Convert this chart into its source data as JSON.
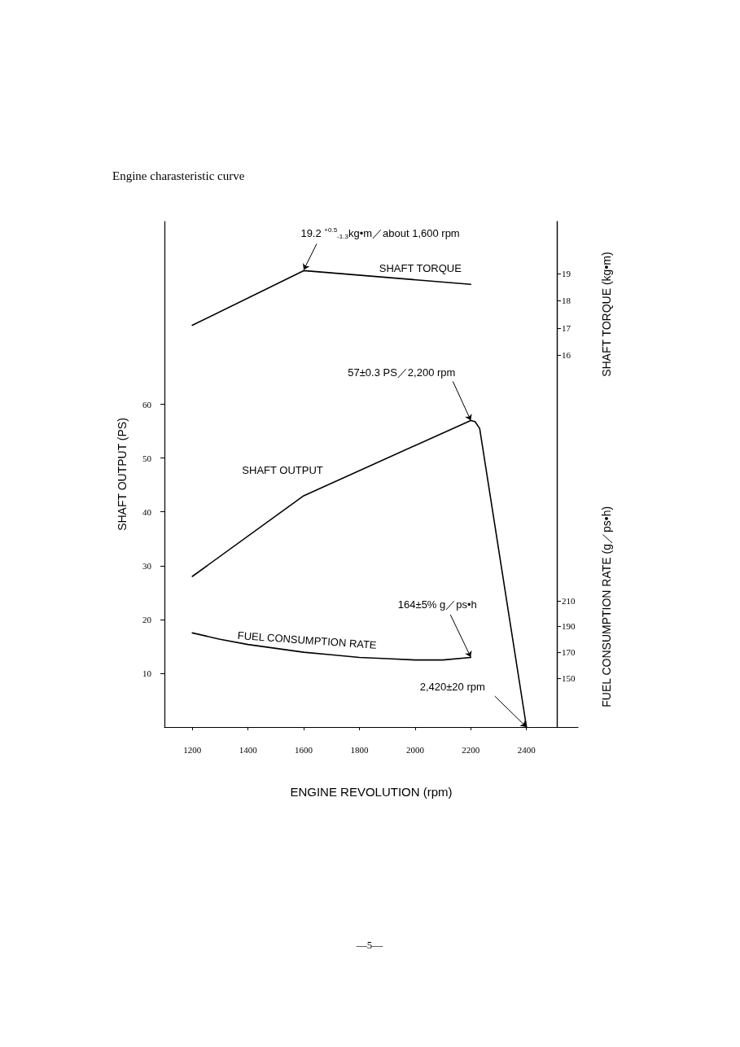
{
  "chart_data": {
    "type": "line",
    "title": "Engine charasteristic curve",
    "xlabel": "ENGINE REVOLUTION (rpm)",
    "ylabel": "SHAFT OUTPUT (PS)",
    "y2label": "SHAFT TORQUE (kg•m)",
    "y3label": "FUEL CONSUMPTION RATE (g／ps•h)",
    "xlim": [
      1100,
      2585
    ],
    "xticks": [
      1200,
      1400,
      1600,
      1800,
      2000,
      2200,
      2400
    ],
    "ylim": [
      0,
      94
    ],
    "yticks": [
      10,
      20,
      30,
      40,
      50,
      60
    ],
    "y2lim": [
      2.4,
      20.9
    ],
    "y2ticks": [
      16,
      17,
      18,
      19
    ],
    "y3lim": [
      112,
      504
    ],
    "y3ticks": [
      150,
      170,
      190,
      210
    ],
    "grid": false,
    "legend": false,
    "marker": "none",
    "line_style": "solid",
    "series": [
      {
        "name": "SHAFT OUTPUT",
        "color": "#000000",
        "x": [
          1200,
          1600,
          2200,
          2215,
          2232,
          2400
        ],
        "values": [
          28,
          43,
          57,
          56.8,
          55.5,
          0
        ]
      },
      {
        "name": "SHAFT TORQUE",
        "color": "#000000",
        "axis": "y2",
        "x": [
          1200,
          1600,
          2200
        ],
        "values": [
          17.1,
          19.1,
          18.6
        ]
      },
      {
        "name": "FUEL CONSUMPTION RATE",
        "color": "#000000",
        "axis": "y3",
        "x": [
          1200,
          1300,
          1400,
          1500,
          1600,
          1700,
          1800,
          1900,
          2000,
          2100,
          2200
        ],
        "values": [
          185,
          180,
          176,
          173,
          170,
          168,
          166,
          165,
          164,
          164,
          166
        ]
      }
    ],
    "annotations": [
      {
        "text": "19.2 $^{+0.5}$$_{-1.3}$kg•m／about 1,600 rpm",
        "x": 1600,
        "y": 85
      },
      {
        "text": "57±0.3 PS／2,200 rpm",
        "x": 2200,
        "y": 57
      },
      {
        "text": "164±5% g／ps•h",
        "x": 2200,
        "y": 13
      },
      {
        "text": "2,420±20 rpm",
        "x": 2400,
        "y": 0
      },
      "—5—"
    ]
  }
}
